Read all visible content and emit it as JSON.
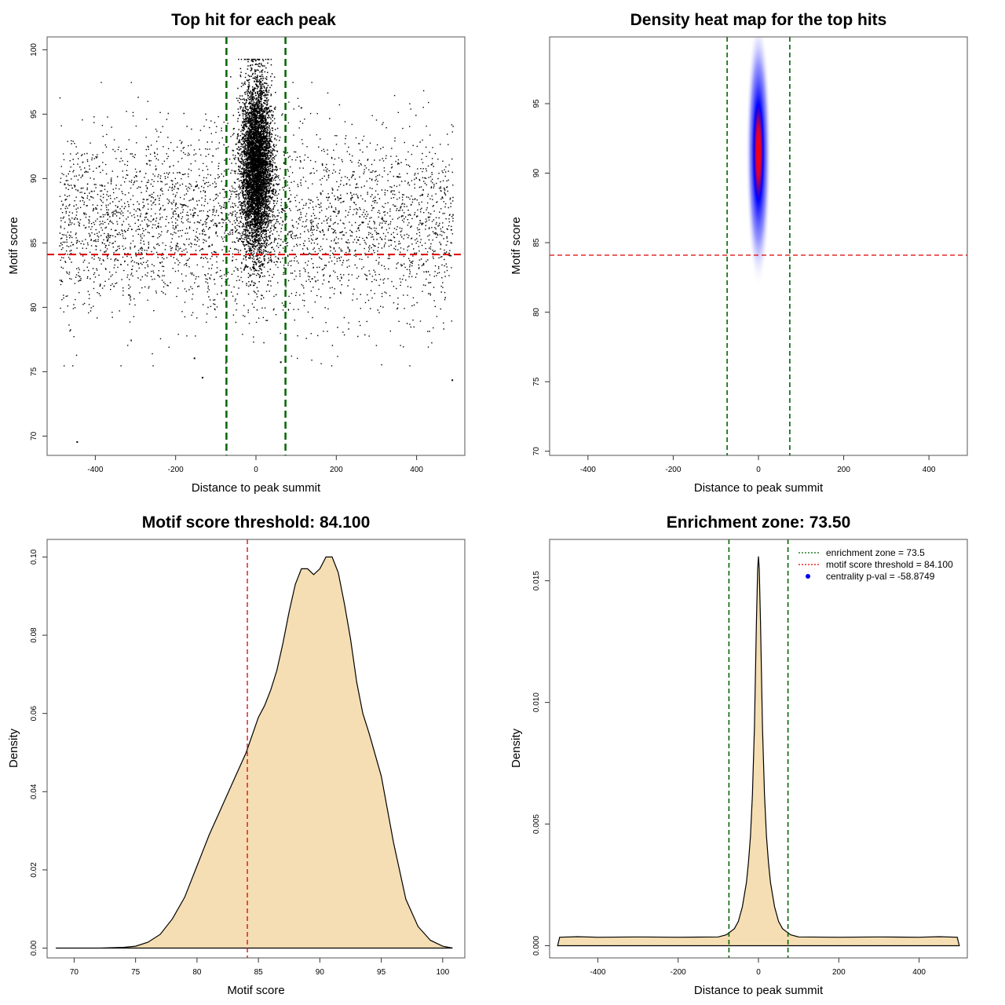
{
  "chart_data": [
    {
      "type": "scatter",
      "title": "Top hit for each peak",
      "xlabel": "Distance to peak summit",
      "ylabel": "Motif score",
      "xlim": [
        -520,
        520
      ],
      "ylim": [
        68.5,
        101
      ],
      "xticks": [
        -400,
        -200,
        0,
        200,
        400
      ],
      "yticks": [
        70,
        75,
        80,
        85,
        90,
        95,
        100
      ],
      "vlines": [
        -73.5,
        73.5
      ],
      "hline": 84.1,
      "points_note": "dense scatter: uniform background across x in [-490, 490], y roughly 76-96; dense central cluster at x ≈ 0 (sd ≈ 20), y ≈ 82-99",
      "points": [
        [
          -447,
          69.6
        ],
        [
          -135,
          74.6
        ],
        [
          487,
          74.4
        ],
        [
          60,
          75.8
        ],
        [
          -155,
          76.1
        ]
      ],
      "colors": {
        "points": "#000000",
        "vlines": "#006400",
        "hline": "#dd0000"
      }
    },
    {
      "type": "heatmap",
      "title": "Density heat map for the top hits",
      "xlabel": "Distance to peak summit",
      "ylabel": "Motif score",
      "xlim": [
        -490,
        490
      ],
      "ylim": [
        69.7,
        99.8
      ],
      "xticks": [
        -400,
        -200,
        0,
        200,
        400
      ],
      "yticks": [
        70,
        75,
        80,
        85,
        90,
        95
      ],
      "peak": {
        "x": 0,
        "y": 91.5
      },
      "vlines": [
        -73.5,
        73.5
      ],
      "hline": 84.1,
      "colors": {
        "low": "#ffffff",
        "mid": "#0000ff",
        "high": "#ff0000",
        "vlines": "#006400",
        "hline": "#dd0000"
      }
    },
    {
      "type": "area",
      "title": "Motif score threshold: 84.100",
      "xlabel": "Motif score",
      "ylabel": "Density",
      "xlim": [
        67.8,
        101.8
      ],
      "ylim": [
        -0.0025,
        0.1045
      ],
      "xticks": [
        70,
        75,
        80,
        85,
        90,
        95,
        100
      ],
      "yticks": [
        0.0,
        0.02,
        0.04,
        0.06,
        0.08,
        0.1
      ],
      "ytick_labels": [
        "0.00",
        "0.02",
        "0.04",
        "0.06",
        "0.08",
        "0.10"
      ],
      "x": [
        68.5,
        72,
        74,
        75,
        76,
        77,
        78,
        79,
        80,
        81,
        82,
        83,
        84,
        85,
        85.5,
        86,
        86.5,
        87,
        87.5,
        88,
        88.5,
        89,
        89.5,
        90,
        90.5,
        91,
        91.5,
        92,
        92.5,
        93,
        93.5,
        94,
        95,
        96,
        97,
        98,
        99,
        100,
        100.8
      ],
      "y": [
        0,
        0,
        0.0002,
        0.0005,
        0.0015,
        0.0035,
        0.0075,
        0.013,
        0.021,
        0.029,
        0.036,
        0.043,
        0.05,
        0.059,
        0.062,
        0.066,
        0.071,
        0.078,
        0.086,
        0.093,
        0.097,
        0.097,
        0.0955,
        0.097,
        0.1,
        0.1,
        0.096,
        0.088,
        0.079,
        0.068,
        0.06,
        0.055,
        0.044,
        0.027,
        0.0125,
        0.0055,
        0.002,
        0.0005,
        0
      ],
      "vline": 84.1,
      "colors": {
        "fill": "#f5deb3",
        "line": "#000000",
        "vline": "#dd0000"
      }
    },
    {
      "type": "area",
      "title": "Enrichment zone: 73.50",
      "xlabel": "Distance to peak summit",
      "ylabel": "Density",
      "xlim": [
        -520,
        520
      ],
      "ylim": [
        -0.0005,
        0.0167
      ],
      "xticks": [
        -400,
        -200,
        0,
        200,
        400
      ],
      "yticks": [
        0.0,
        0.005,
        0.01,
        0.015
      ],
      "ytick_labels": [
        "0.000",
        "0.005",
        "0.010",
        "0.015"
      ],
      "x": [
        -500,
        -495,
        -450,
        -400,
        -300,
        -200,
        -100,
        -80,
        -60,
        -50,
        -40,
        -30,
        -25,
        -20,
        -15,
        -10,
        -5,
        -2,
        0,
        2,
        5,
        10,
        15,
        20,
        25,
        30,
        40,
        50,
        60,
        80,
        100,
        200,
        300,
        400,
        450,
        495,
        500
      ],
      "y": [
        0,
        0.00035,
        0.00037,
        0.00035,
        0.00036,
        0.00035,
        0.00036,
        0.00045,
        0.0007,
        0.001,
        0.0016,
        0.0026,
        0.0034,
        0.0045,
        0.0062,
        0.009,
        0.0133,
        0.0155,
        0.016,
        0.0155,
        0.0133,
        0.009,
        0.0062,
        0.0045,
        0.0034,
        0.0026,
        0.0016,
        0.001,
        0.0007,
        0.00045,
        0.00036,
        0.00035,
        0.00036,
        0.00035,
        0.00037,
        0.00035,
        0
      ],
      "vlines": [
        -73.5,
        73.5
      ],
      "legend": [
        {
          "label": "enrichment zone = 73.5",
          "kind": "dotted-line",
          "color": "#006400"
        },
        {
          "label": "motif score threshold = 84.100",
          "kind": "dotted-line",
          "color": "#dd0000"
        },
        {
          "label": "centrality p-val = -58.8749",
          "kind": "point",
          "color": "#0000ee"
        }
      ],
      "legend_position": "top-right",
      "colors": {
        "fill": "#f5deb3",
        "line": "#000000",
        "vlines": "#006400"
      }
    }
  ]
}
